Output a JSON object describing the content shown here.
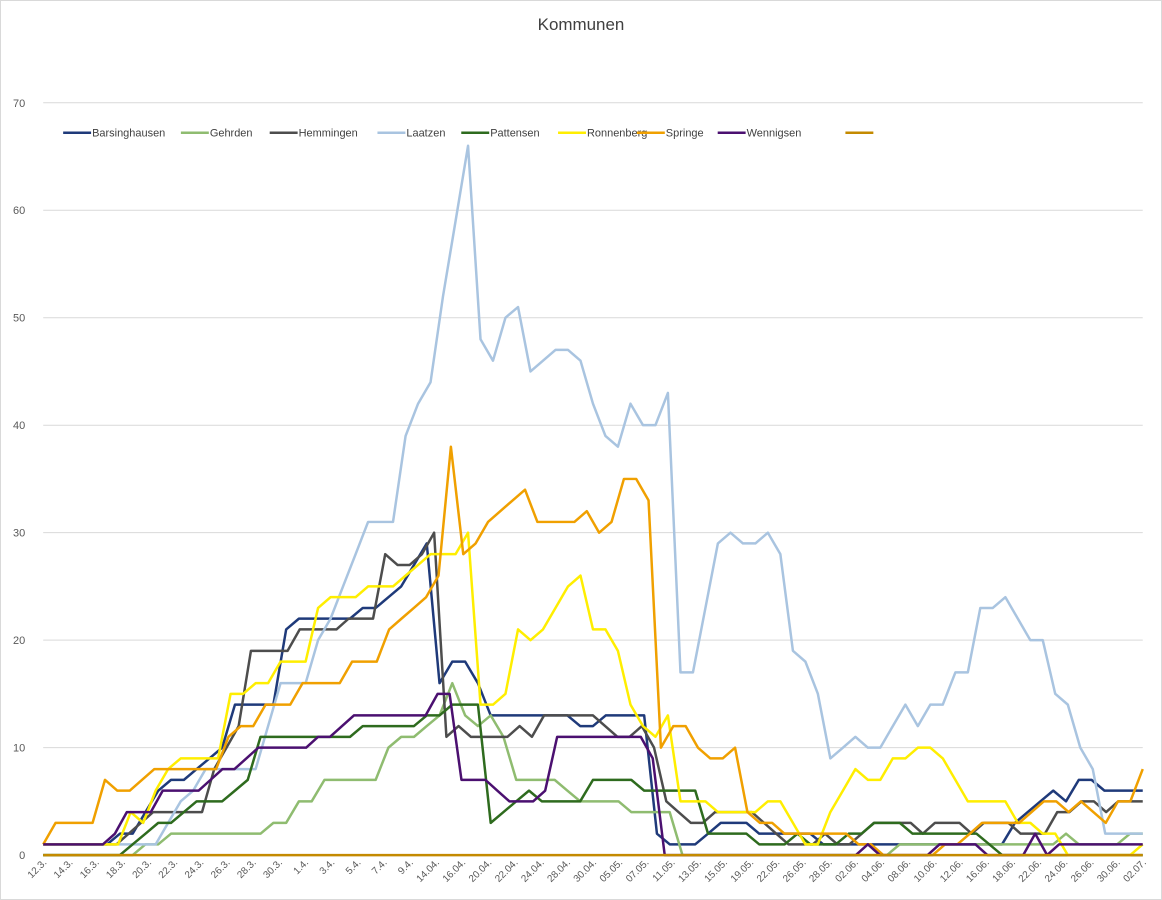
{
  "chart_data": {
    "type": "line",
    "title": "Kommunen",
    "xlabel": "",
    "ylabel": "",
    "ylim": [
      0,
      70
    ],
    "yticks": [
      0,
      10,
      20,
      30,
      40,
      50,
      60,
      70
    ],
    "grid": true,
    "legend_position": "top-left",
    "x_tick_labels": [
      "12.3.",
      "14.3.",
      "16.3.",
      "18.3.",
      "20.3.",
      "22.3.",
      "24.3.",
      "26.3.",
      "28.3.",
      "30.3.",
      "1.4.",
      "3.4.",
      "5.4.",
      "7.4.",
      "9.4.",
      "14.04.",
      "16.04.",
      "20.04.",
      "22.04.",
      "24.04.",
      "28.04.",
      "30.04.",
      "05.05.",
      "07.05.",
      "11.05.",
      "13.05.",
      "15.05.",
      "19.05.",
      "22.05.",
      "26.05.",
      "28.05.",
      "02.06.",
      "04.06.",
      "08.06.",
      "10.06.",
      "12.06.",
      "16.06.",
      "18.06.",
      "22.06.",
      "24.06.",
      "26.06.",
      "30.06.",
      "02.07."
    ],
    "series": [
      {
        "name": "Barsinghausen",
        "color": "#1f3a7a",
        "values": [
          1,
          1,
          1,
          1,
          1,
          1,
          2,
          2,
          4,
          6,
          7,
          7,
          8,
          9,
          10,
          14,
          14,
          14,
          14,
          21,
          22,
          22,
          22,
          22,
          22,
          23,
          23,
          24,
          25,
          27,
          29,
          16,
          18,
          18,
          16,
          13,
          13,
          13,
          13,
          13,
          13,
          13,
          12,
          12,
          13,
          13,
          13,
          13,
          2,
          1,
          1,
          1,
          2,
          3,
          3,
          3,
          2,
          2,
          2,
          2,
          2,
          1,
          1,
          1,
          1,
          1,
          1,
          1,
          1,
          1,
          1,
          1,
          1,
          1,
          1,
          1,
          3,
          4,
          5,
          6,
          5,
          7,
          7,
          6,
          6,
          6,
          6
        ]
      },
      {
        "name": "Gehrden",
        "color": "#8fbc70",
        "values": [
          0,
          0,
          0,
          0,
          0,
          0,
          0,
          0,
          1,
          1,
          2,
          2,
          2,
          2,
          2,
          2,
          2,
          2,
          3,
          3,
          5,
          5,
          7,
          7,
          7,
          7,
          7,
          10,
          11,
          11,
          12,
          13,
          16,
          13,
          12,
          13,
          11,
          7,
          7,
          7,
          7,
          6,
          5,
          5,
          5,
          5,
          4,
          4,
          4,
          4,
          0,
          0,
          0,
          0,
          0,
          0,
          0,
          0,
          0,
          0,
          0,
          0,
          0,
          0,
          0,
          0,
          0,
          1,
          1,
          1,
          1,
          1,
          1,
          1,
          1,
          1,
          1,
          1,
          1,
          1,
          2,
          1,
          1,
          1,
          1,
          2,
          2
        ]
      },
      {
        "name": "Hemmingen",
        "color": "#4d4d4d",
        "values": [
          1,
          1,
          1,
          1,
          1,
          1,
          1,
          2,
          3,
          4,
          4,
          4,
          4,
          4,
          8,
          10,
          12,
          19,
          19,
          19,
          19,
          21,
          21,
          21,
          21,
          22,
          22,
          22,
          28,
          27,
          27,
          28,
          30,
          11,
          12,
          11,
          11,
          11,
          11,
          12,
          11,
          13,
          13,
          13,
          13,
          13,
          12,
          11,
          11,
          12,
          10,
          5,
          4,
          3,
          3,
          4,
          4,
          4,
          4,
          3,
          2,
          1,
          1,
          1,
          2,
          1,
          1,
          2,
          3,
          3,
          3,
          3,
          2,
          3,
          3,
          3,
          2,
          3,
          3,
          3,
          2,
          2,
          2,
          4,
          4,
          5,
          5,
          4,
          5,
          5,
          5
        ]
      },
      {
        "name": "Laatzen",
        "color": "#a9c4e0",
        "values": [
          1,
          1,
          1,
          1,
          1,
          1,
          1,
          1,
          1,
          1,
          3,
          5,
          6,
          8,
          8,
          8,
          8,
          8,
          12,
          16,
          16,
          16,
          20,
          22,
          25,
          28,
          31,
          31,
          31,
          39,
          42,
          44,
          52,
          59,
          66,
          48,
          46,
          50,
          51,
          45,
          46,
          47,
          47,
          46,
          42,
          39,
          38,
          42,
          40,
          40,
          43,
          17,
          17,
          23,
          29,
          30,
          29,
          29,
          30,
          28,
          19,
          18,
          15,
          9,
          10,
          11,
          10,
          10,
          12,
          14,
          12,
          14,
          14,
          17,
          17,
          23,
          23,
          24,
          22,
          20,
          20,
          15,
          14,
          10,
          8,
          2,
          2,
          2,
          2
        ]
      },
      {
        "name": "Pattensen",
        "color": "#2e6b1e",
        "values": [
          0,
          0,
          0,
          0,
          0,
          0,
          0,
          1,
          2,
          3,
          3,
          4,
          5,
          5,
          5,
          6,
          7,
          11,
          11,
          11,
          11,
          11,
          11,
          11,
          11,
          12,
          12,
          12,
          12,
          12,
          13,
          13,
          14,
          14,
          14,
          3,
          4,
          5,
          6,
          5,
          5,
          5,
          5,
          7,
          7,
          7,
          7,
          6,
          6,
          6,
          6,
          6,
          2,
          2,
          2,
          2,
          1,
          1,
          1,
          2,
          1,
          1,
          1,
          2,
          2,
          3,
          3,
          3,
          2,
          2,
          2,
          2,
          2,
          2,
          1,
          0,
          0,
          0,
          0,
          0,
          0,
          0,
          0,
          0,
          0,
          0,
          0
        ]
      },
      {
        "name": "Ronnenberg",
        "color": "#ffee00",
        "values": [
          1,
          1,
          1,
          1,
          1,
          1,
          1,
          4,
          3,
          6,
          8,
          9,
          9,
          9,
          9,
          15,
          15,
          16,
          16,
          18,
          18,
          18,
          23,
          24,
          24,
          24,
          25,
          25,
          25,
          26,
          27,
          28,
          28,
          28,
          30,
          14,
          14,
          15,
          21,
          20,
          21,
          23,
          25,
          26,
          21,
          21,
          19,
          14,
          12,
          11,
          13,
          5,
          5,
          5,
          4,
          4,
          4,
          4,
          5,
          5,
          3,
          1,
          1,
          4,
          6,
          8,
          7,
          7,
          9,
          9,
          10,
          10,
          9,
          7,
          5,
          5,
          5,
          5,
          3,
          3,
          2,
          2,
          0,
          0,
          0,
          0,
          0,
          0,
          1
        ]
      },
      {
        "name": "Springe",
        "color": "#f0a000",
        "values": [
          1,
          3,
          3,
          3,
          3,
          7,
          6,
          6,
          7,
          8,
          8,
          8,
          8,
          8,
          8,
          11,
          12,
          12,
          14,
          14,
          14,
          16,
          16,
          16,
          16,
          18,
          18,
          18,
          21,
          22,
          23,
          24,
          26,
          38,
          28,
          29,
          31,
          32,
          33,
          34,
          31,
          31,
          31,
          31,
          32,
          30,
          31,
          35,
          35,
          33,
          10,
          12,
          12,
          10,
          9,
          9,
          10,
          4,
          3,
          3,
          2,
          2,
          2,
          2,
          2,
          2,
          1,
          1,
          0,
          0,
          0,
          0,
          0,
          1,
          1,
          2,
          3,
          3,
          3,
          3,
          4,
          5,
          5,
          4,
          5,
          4,
          3,
          5,
          5,
          8
        ]
      },
      {
        "name": "Wennigsen",
        "color": "#4b1070",
        "values": [
          1,
          1,
          1,
          1,
          1,
          1,
          2,
          4,
          4,
          4,
          6,
          6,
          6,
          6,
          7,
          8,
          8,
          9,
          10,
          10,
          10,
          10,
          10,
          11,
          11,
          12,
          13,
          13,
          13,
          13,
          13,
          13,
          13,
          15,
          15,
          7,
          7,
          7,
          6,
          5,
          5,
          5,
          6,
          11,
          11,
          11,
          11,
          11,
          11,
          11,
          11,
          9,
          0,
          0,
          0,
          0,
          0,
          0,
          0,
          0,
          0,
          0,
          0,
          0,
          0,
          0,
          0,
          0,
          0,
          1,
          0,
          0,
          0,
          0,
          0,
          1,
          1,
          1,
          1,
          0,
          0,
          0,
          0,
          2,
          0,
          1,
          1,
          1,
          1,
          1,
          1,
          1,
          1
        ]
      },
      {
        "name": "",
        "color": "#c48a00",
        "values": [
          0,
          0,
          0,
          0,
          0,
          0,
          0,
          0,
          0,
          0,
          0,
          0,
          0,
          0,
          0,
          0,
          0,
          0,
          0,
          0,
          0,
          0,
          0,
          0,
          0,
          0,
          0,
          0,
          0,
          0,
          0,
          0,
          0,
          0,
          0,
          0,
          0,
          0,
          0,
          0,
          0,
          0,
          0,
          0,
          0,
          0,
          0,
          0,
          0,
          0,
          0,
          0,
          0,
          0,
          0,
          0,
          0,
          0,
          0,
          0,
          0,
          0,
          0,
          0,
          0,
          0,
          0,
          0,
          0,
          0,
          0,
          0,
          0,
          0,
          0,
          0,
          0,
          0,
          0,
          0,
          0,
          0,
          0,
          0,
          0,
          0,
          0,
          0,
          0,
          0
        ]
      }
    ]
  }
}
